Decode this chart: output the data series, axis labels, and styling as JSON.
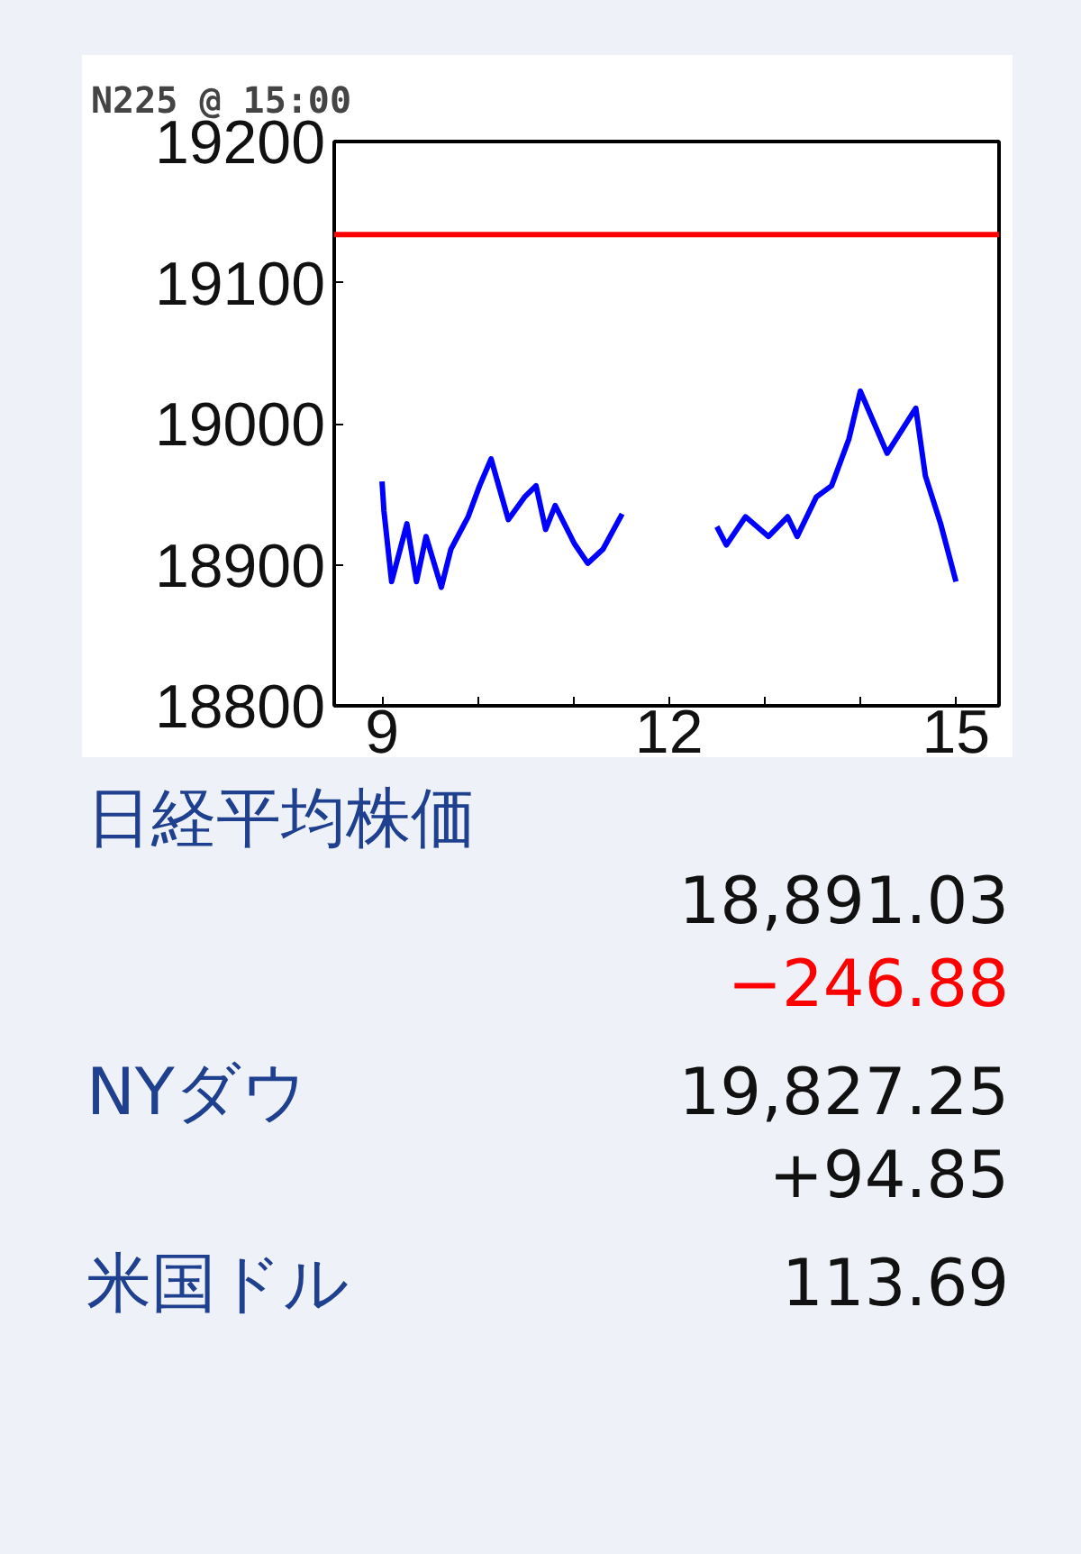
{
  "chart_data": {
    "type": "line",
    "title": "N225   @ 15:00",
    "x": [
      9.0,
      9.02,
      9.1,
      9.26,
      9.36,
      9.46,
      9.62,
      9.72,
      9.9,
      10.02,
      10.14,
      10.32,
      10.49,
      10.61,
      10.71,
      10.81,
      11.01,
      11.15,
      11.31,
      11.51,
      12.0,
      12.5,
      12.6,
      12.8,
      13.04,
      13.24,
      13.34,
      13.54,
      13.7,
      13.88,
      14.0,
      14.28,
      14.58,
      14.68,
      14.84,
      15.0
    ],
    "series": [
      {
        "color": "#0000ff",
        "values": [
          18959,
          18938,
          18888,
          18929,
          18888,
          18920,
          18884,
          18911,
          18934,
          18956,
          18975,
          18932,
          18948,
          18956,
          18925,
          18942,
          18915,
          18901,
          18911,
          18936,
          null,
          18927,
          18914,
          18934,
          18920,
          18934,
          18920,
          18948,
          18956,
          18989,
          19023,
          18979,
          19011,
          18963,
          18929,
          18888
        ]
      }
    ],
    "xlim": [
      8.5,
      15.45
    ],
    "ylim": [
      18800,
      19200
    ],
    "xticks": [
      9,
      {
        "value": 10,
        "label": null
      },
      {
        "value": 11,
        "label": null
      },
      12,
      {
        "value": 13,
        "label": null
      },
      {
        "value": 14,
        "label": null
      },
      15
    ],
    "yticks": [
      18800,
      18900,
      19000,
      19100,
      19200
    ],
    "ref_lines": [
      {
        "axis": "y",
        "value": 19134,
        "color": "#ff0000"
      }
    ],
    "grid": false,
    "marker": "none",
    "line_style": "solid",
    "annotations": [
      "日経平均株価",
      "18,891.03",
      "−246.88",
      "NYダウ",
      "19,827.25",
      "+94.85",
      "米国ドル",
      "113.69"
    ]
  }
}
